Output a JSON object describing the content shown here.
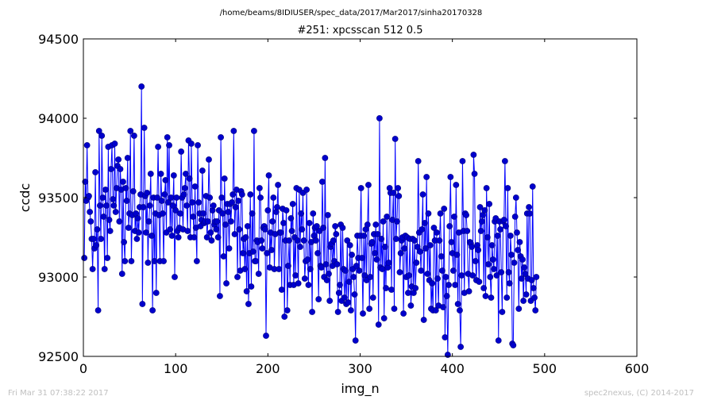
{
  "figure": {
    "suptitle": "/home/beams/8IDIUSER/spec_data/2017/Mar2017/sinha20170328",
    "footer_left": "Fri Mar 31 07:38:22 2017",
    "footer_right": "spec2nexus, (C) 2014-2017"
  },
  "chart_data": {
    "type": "scatter",
    "title": "#251: xpcsscan 512 0.5",
    "xlabel": "img_n",
    "ylabel": "ccdc",
    "xlim": [
      0,
      600
    ],
    "ylim": [
      92500,
      94500
    ],
    "xticks": [
      0,
      100,
      200,
      300,
      400,
      500,
      600
    ],
    "yticks": [
      92500,
      93000,
      93500,
      94000,
      94500
    ],
    "grid": false,
    "legend": "none",
    "style": {
      "line_color": "#0000ff",
      "marker": "circle",
      "marker_color": "#0000cc"
    },
    "x_start": 1,
    "x_step": 1,
    "series": [
      {
        "values": [
          93120,
          93600,
          93480,
          93830,
          93500,
          93510,
          93410,
          93350,
          93240,
          93050,
          93240,
          93180,
          93660,
          93200,
          93300,
          92790,
          93920,
          93450,
          93240,
          93890,
          93500,
          93380,
          93050,
          93550,
          93450,
          93120,
          93820,
          93360,
          93290,
          93680,
          93830,
          93490,
          93450,
          93840,
          93410,
          93560,
          93700,
          93740,
          93350,
          93680,
          93550,
          93020,
          93600,
          93220,
          93100,
          93560,
          93480,
          93750,
          93310,
          93400,
          93920,
          93100,
          93390,
          93540,
          93890,
          93290,
          93400,
          93240,
          93370,
          93280,
          93440,
          93520,
          94200,
          92830,
          93440,
          93940,
          93510,
          93280,
          93530,
          93090,
          93350,
          93450,
          93650,
          93260,
          92790,
          93500,
          93100,
          93400,
          92900,
          93500,
          93820,
          93390,
          93100,
          93650,
          93480,
          93400,
          93100,
          93520,
          93610,
          93280,
          93880,
          93470,
          93830,
          93300,
          93500,
          93260,
          93450,
          93640,
          93000,
          93420,
          93500,
          93290,
          93250,
          93310,
          93400,
          93790,
          93500,
          93300,
          93520,
          93560,
          93650,
          93450,
          93290,
          93860,
          93620,
          93250,
          93840,
          93470,
          93380,
          93250,
          93570,
          93310,
          93100,
          93830,
          93470,
          93400,
          93320,
          93360,
          93670,
          93400,
          93340,
          93350,
          93510,
          93250,
          93350,
          93740,
          93500,
          93280,
          93230,
          93420,
          93450,
          93330,
          93350,
          93300,
          93350,
          93250,
          93420,
          92880,
          93880,
          93500,
          93400,
          93130,
          93620,
          93330,
          92960,
          93460,
          93410,
          93180,
          93460,
          93350,
          93470,
          93520,
          93920,
          93270,
          93440,
          93550,
          93000,
          93480,
          93300,
          93040,
          93540,
          93520,
          93150,
          93240,
          93050,
          93250,
          92910,
          93320,
          92830,
          93150,
          93520,
          92940,
          93400,
          93160,
          93920,
          93100,
          93100,
          93230,
          93220,
          93020,
          93560,
          93500,
          93230,
          93180,
          93310,
          93320,
          93300,
          92630,
          93150,
          93420,
          93640,
          93060,
          93280,
          93170,
          93350,
          93500,
          93050,
          93270,
          93410,
          93440,
          93580,
          93050,
          93280,
          93280,
          92920,
          93430,
          93340,
          92750,
          93230,
          93420,
          92790,
          93070,
          93230,
          92950,
          93370,
          93290,
          93460,
          92950,
          93250,
          93010,
          93560,
          93230,
          92960,
          93550,
          93190,
          93400,
          93300,
          93530,
          93230,
          92990,
          93100,
          93550,
          93110,
          92950,
          93340,
          93050,
          93220,
          92780,
          93400,
          93260,
          93310,
          93230,
          93320,
          93150,
          92860,
          93290,
          93070,
          93060,
          93600,
          93310,
          93000,
          93750,
          93080,
          92980,
          93390,
          93020,
          92850,
          93190,
          93210,
          93070,
          93230,
          93100,
          93320,
          93270,
          93080,
          92780,
          92900,
          92950,
          93330,
          92850,
          93310,
          93050,
          92870,
          93040,
          92830,
          93230,
          92840,
          92970,
          93200,
          92790,
          93140,
          93050,
          93000,
          92890,
          92600,
          93070,
          93260,
          93120,
          93040,
          93260,
          93560,
          93120,
          92770,
          93260,
          93010,
          93300,
          92980,
          93330,
          93580,
          92800,
          93000,
          93210,
          93220,
          92870,
          93270,
          93150,
          93330,
          93110,
          93270,
          92700,
          94000,
          93060,
          93240,
          93050,
          93350,
          92740,
          93190,
          92930,
          93380,
          93060,
          93090,
          93560,
          93530,
          92920,
          93360,
          93530,
          92800,
          93870,
          93240,
          93350,
          93560,
          93510,
          93030,
          93150,
          93230,
          93250,
          92770,
          93180,
          93260,
          93000,
          93250,
          92900,
          93010,
          93240,
          92820,
          92940,
          93240,
          92900,
          93230,
          92930,
          93090,
          93190,
          93730,
          93280,
          93160,
          93040,
          93300,
          93520,
          92730,
          93340,
          93180,
          93630,
          93020,
          93400,
          92980,
          93200,
          92800,
          92960,
          92790,
          93310,
          93230,
          92790,
          93280,
          92990,
          92820,
          93230,
          93400,
          93130,
          93040,
          92810,
          93430,
          92620,
          93000,
          92880,
          92510,
          92950,
          93320,
          93630,
          93220,
          93150,
          93040,
          93380,
          92950,
          93580,
          93140,
          92830,
          93280,
          92790,
          92560,
          93010,
          93730,
          93290,
          92900,
          93400,
          93390,
          93290,
          93020,
          92910,
          93220,
          93210,
          93190,
          93010,
          93770,
          93650,
          93100,
          92980,
          93200,
          93170,
          92970,
          93440,
          93290,
          93350,
          93390,
          92930,
          93420,
          92880,
          93560,
          93250,
          93080,
          93460,
          93000,
          92870,
          93200,
          93110,
          93050,
          93350,
          93370,
          93010,
          93260,
          92600,
          93350,
          93300,
          93030,
          92780,
          93350,
          93360,
          93730,
          93320,
          92870,
          93560,
          93030,
          92960,
          93260,
          93140,
          92580,
          92570,
          93090,
          93380,
          93500,
          93280,
          93170,
          92800,
          93220,
          93130,
          92990,
          93110,
          92850,
          93060,
          93020,
          92890,
          93400,
          92990,
          93440,
          93400,
          92850,
          92980,
          93570,
          92930,
          92870,
          92790,
          93000
        ]
      }
    ]
  }
}
